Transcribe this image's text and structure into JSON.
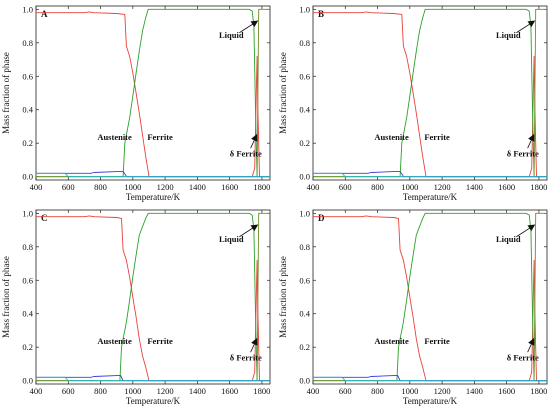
{
  "figure": {
    "colors": {
      "austenite": "#2aa02a",
      "ferrite": "#e8413a",
      "liquid": "#6b8e23",
      "delta_ferrite": "#c0392b",
      "blue_phase": "#3b3bdc",
      "cyan_phase": "#21b6c8"
    }
  },
  "chart_data": [
    {
      "type": "line",
      "panel": "A",
      "xlabel": "Temperature/K",
      "ylabel": "Mass fraction of phase",
      "xlim": [
        400,
        1850
      ],
      "ylim": [
        -0.02,
        1.02
      ],
      "xticks": [
        400,
        600,
        800,
        1000,
        1200,
        1400,
        1600,
        1800
      ],
      "yticks": [
        0.0,
        0.2,
        0.4,
        0.6,
        0.8,
        1.0
      ],
      "annotations": [
        "Liquid",
        "Austenite",
        "Ferrite",
        "δ Ferrite"
      ],
      "series": [
        {
          "key": "ferrite",
          "x": [
            400,
            600,
            700,
            730,
            760,
            900,
            950,
            960,
            980,
            1000,
            1020,
            1040,
            1060,
            1080,
            1095,
            1100,
            1740,
            1755,
            1765,
            1770,
            1775,
            1785,
            1850
          ],
          "y": [
            0.98,
            0.98,
            0.98,
            0.985,
            0.98,
            0.975,
            0.97,
            0.78,
            0.72,
            0.62,
            0.5,
            0.38,
            0.25,
            0.12,
            0.03,
            0.0,
            0.0,
            0.05,
            0.5,
            0.72,
            0.4,
            0.0,
            0.0
          ]
        },
        {
          "key": "austenite",
          "x": [
            400,
            940,
            950,
            960,
            980,
            1000,
            1020,
            1040,
            1060,
            1080,
            1095,
            1100,
            1720,
            1740,
            1750,
            1760,
            1770,
            1850
          ],
          "y": [
            0.0,
            0.0,
            0.2,
            0.25,
            0.35,
            0.48,
            0.62,
            0.75,
            0.87,
            0.95,
            1.0,
            1.0,
            1.0,
            0.99,
            0.9,
            0.4,
            0.0,
            0.0
          ]
        },
        {
          "key": "liquid",
          "x": [
            400,
            1770,
            1780,
            1790,
            1850
          ],
          "y": [
            0.0,
            0.0,
            1.0,
            1.0,
            1.0
          ]
        },
        {
          "key": "blue_phase",
          "x": [
            400,
            740,
            760,
            900,
            940,
            955,
            960,
            1850
          ],
          "y": [
            0.02,
            0.02,
            0.025,
            0.03,
            0.03,
            0.01,
            0.0,
            0.0
          ]
        },
        {
          "key": "cyan_phase",
          "x": [
            400,
            580,
            600,
            1850
          ],
          "y": [
            0.02,
            0.02,
            0.0,
            0.0
          ]
        }
      ]
    },
    {
      "type": "line",
      "panel": "B",
      "xlabel": "Temperature/K",
      "ylabel": "Mass fraction of phase",
      "xlim": [
        400,
        1850
      ],
      "ylim": [
        -0.02,
        1.02
      ],
      "xticks": [
        400,
        600,
        800,
        1000,
        1200,
        1400,
        1600,
        1800
      ],
      "yticks": [
        0.0,
        0.2,
        0.4,
        0.6,
        0.8,
        1.0
      ],
      "annotations": [
        "Liquid",
        "Austenite",
        "Ferrite",
        "δ Ferrite"
      ],
      "series": [
        {
          "key": "ferrite",
          "x": [
            400,
            600,
            700,
            730,
            760,
            900,
            950,
            960,
            980,
            1000,
            1020,
            1040,
            1060,
            1080,
            1095,
            1100,
            1740,
            1755,
            1765,
            1770,
            1775,
            1785,
            1850
          ],
          "y": [
            0.98,
            0.98,
            0.98,
            0.985,
            0.98,
            0.975,
            0.97,
            0.78,
            0.72,
            0.62,
            0.5,
            0.38,
            0.25,
            0.12,
            0.03,
            0.0,
            0.0,
            0.05,
            0.5,
            0.72,
            0.4,
            0.0,
            0.0
          ]
        },
        {
          "key": "austenite",
          "x": [
            400,
            940,
            950,
            960,
            980,
            1000,
            1020,
            1040,
            1060,
            1080,
            1095,
            1100,
            1720,
            1740,
            1750,
            1760,
            1770,
            1850
          ],
          "y": [
            0.0,
            0.0,
            0.2,
            0.25,
            0.35,
            0.48,
            0.62,
            0.75,
            0.87,
            0.95,
            1.0,
            1.0,
            1.0,
            0.99,
            0.9,
            0.4,
            0.0,
            0.0
          ]
        },
        {
          "key": "liquid",
          "x": [
            400,
            1770,
            1780,
            1790,
            1850
          ],
          "y": [
            0.0,
            0.0,
            1.0,
            1.0,
            1.0
          ]
        },
        {
          "key": "blue_phase",
          "x": [
            400,
            740,
            760,
            900,
            940,
            955,
            960,
            1850
          ],
          "y": [
            0.02,
            0.02,
            0.025,
            0.03,
            0.03,
            0.01,
            0.0,
            0.0
          ]
        },
        {
          "key": "cyan_phase",
          "x": [
            400,
            580,
            600,
            1850
          ],
          "y": [
            0.02,
            0.02,
            0.0,
            0.0
          ]
        }
      ]
    },
    {
      "type": "line",
      "panel": "C",
      "xlabel": "Temperature/K",
      "ylabel": "Mass fraction of phase",
      "xlim": [
        400,
        1850
      ],
      "ylim": [
        -0.02,
        1.02
      ],
      "xticks": [
        400,
        600,
        800,
        1000,
        1200,
        1400,
        1600,
        1800
      ],
      "yticks": [
        0.0,
        0.2,
        0.4,
        0.6,
        0.8,
        1.0
      ],
      "annotations": [
        "Liquid",
        "Austenite",
        "Ferrite",
        "δ Ferrite"
      ],
      "series": [
        {
          "key": "ferrite",
          "x": [
            400,
            600,
            700,
            730,
            760,
            900,
            930,
            940,
            960,
            980,
            1000,
            1020,
            1040,
            1060,
            1080,
            1095,
            1100,
            1740,
            1755,
            1765,
            1770,
            1775,
            1785,
            1850
          ],
          "y": [
            0.98,
            0.98,
            0.98,
            0.985,
            0.98,
            0.975,
            0.97,
            0.78,
            0.72,
            0.62,
            0.5,
            0.38,
            0.25,
            0.15,
            0.08,
            0.02,
            0.0,
            0.0,
            0.05,
            0.5,
            0.72,
            0.4,
            0.0,
            0.0
          ]
        },
        {
          "key": "austenite",
          "x": [
            400,
            920,
            930,
            940,
            960,
            980,
            1000,
            1020,
            1040,
            1060,
            1080,
            1095,
            1100,
            1720,
            1740,
            1750,
            1760,
            1770,
            1850
          ],
          "y": [
            0.0,
            0.0,
            0.2,
            0.25,
            0.35,
            0.48,
            0.62,
            0.75,
            0.87,
            0.92,
            0.97,
            1.0,
            1.0,
            1.0,
            0.99,
            0.9,
            0.4,
            0.0,
            0.0
          ]
        },
        {
          "key": "liquid",
          "x": [
            400,
            1770,
            1780,
            1790,
            1850
          ],
          "y": [
            0.0,
            0.0,
            1.0,
            1.0,
            1.0
          ]
        },
        {
          "key": "blue_phase",
          "x": [
            400,
            740,
            760,
            900,
            925,
            935,
            940,
            1850
          ],
          "y": [
            0.02,
            0.02,
            0.025,
            0.03,
            0.03,
            0.01,
            0.0,
            0.0
          ]
        },
        {
          "key": "cyan_phase",
          "x": [
            400,
            580,
            600,
            1850
          ],
          "y": [
            0.02,
            0.02,
            0.0,
            0.0
          ]
        }
      ]
    },
    {
      "type": "line",
      "panel": "D",
      "xlabel": "Temperature/K",
      "ylabel": "Mass fraction of phase",
      "xlim": [
        400,
        1850
      ],
      "ylim": [
        -0.02,
        1.02
      ],
      "xticks": [
        400,
        600,
        800,
        1000,
        1200,
        1400,
        1600,
        1800
      ],
      "yticks": [
        0.0,
        0.2,
        0.4,
        0.6,
        0.8,
        1.0
      ],
      "annotations": [
        "Liquid",
        "Austenite",
        "Ferrite",
        "δ Ferrite"
      ],
      "series": [
        {
          "key": "ferrite",
          "x": [
            400,
            600,
            700,
            730,
            760,
            900,
            930,
            940,
            960,
            980,
            1000,
            1020,
            1040,
            1060,
            1080,
            1095,
            1100,
            1740,
            1755,
            1765,
            1770,
            1775,
            1785,
            1850
          ],
          "y": [
            0.98,
            0.98,
            0.98,
            0.985,
            0.98,
            0.975,
            0.97,
            0.78,
            0.72,
            0.62,
            0.5,
            0.38,
            0.25,
            0.15,
            0.08,
            0.02,
            0.0,
            0.0,
            0.05,
            0.5,
            0.72,
            0.4,
            0.0,
            0.0
          ]
        },
        {
          "key": "austenite",
          "x": [
            400,
            920,
            930,
            940,
            960,
            980,
            1000,
            1020,
            1040,
            1060,
            1080,
            1095,
            1100,
            1720,
            1740,
            1750,
            1760,
            1770,
            1850
          ],
          "y": [
            0.0,
            0.0,
            0.2,
            0.25,
            0.35,
            0.48,
            0.62,
            0.75,
            0.87,
            0.92,
            0.97,
            1.0,
            1.0,
            1.0,
            0.99,
            0.9,
            0.4,
            0.0,
            0.0
          ]
        },
        {
          "key": "liquid",
          "x": [
            400,
            1770,
            1780,
            1790,
            1850
          ],
          "y": [
            0.0,
            0.0,
            1.0,
            1.0,
            1.0
          ]
        },
        {
          "key": "blue_phase",
          "x": [
            400,
            740,
            760,
            900,
            925,
            935,
            940,
            1850
          ],
          "y": [
            0.02,
            0.02,
            0.025,
            0.03,
            0.03,
            0.01,
            0.0,
            0.0
          ]
        },
        {
          "key": "cyan_phase",
          "x": [
            400,
            580,
            600,
            1850
          ],
          "y": [
            0.02,
            0.02,
            0.0,
            0.0
          ]
        }
      ]
    }
  ]
}
